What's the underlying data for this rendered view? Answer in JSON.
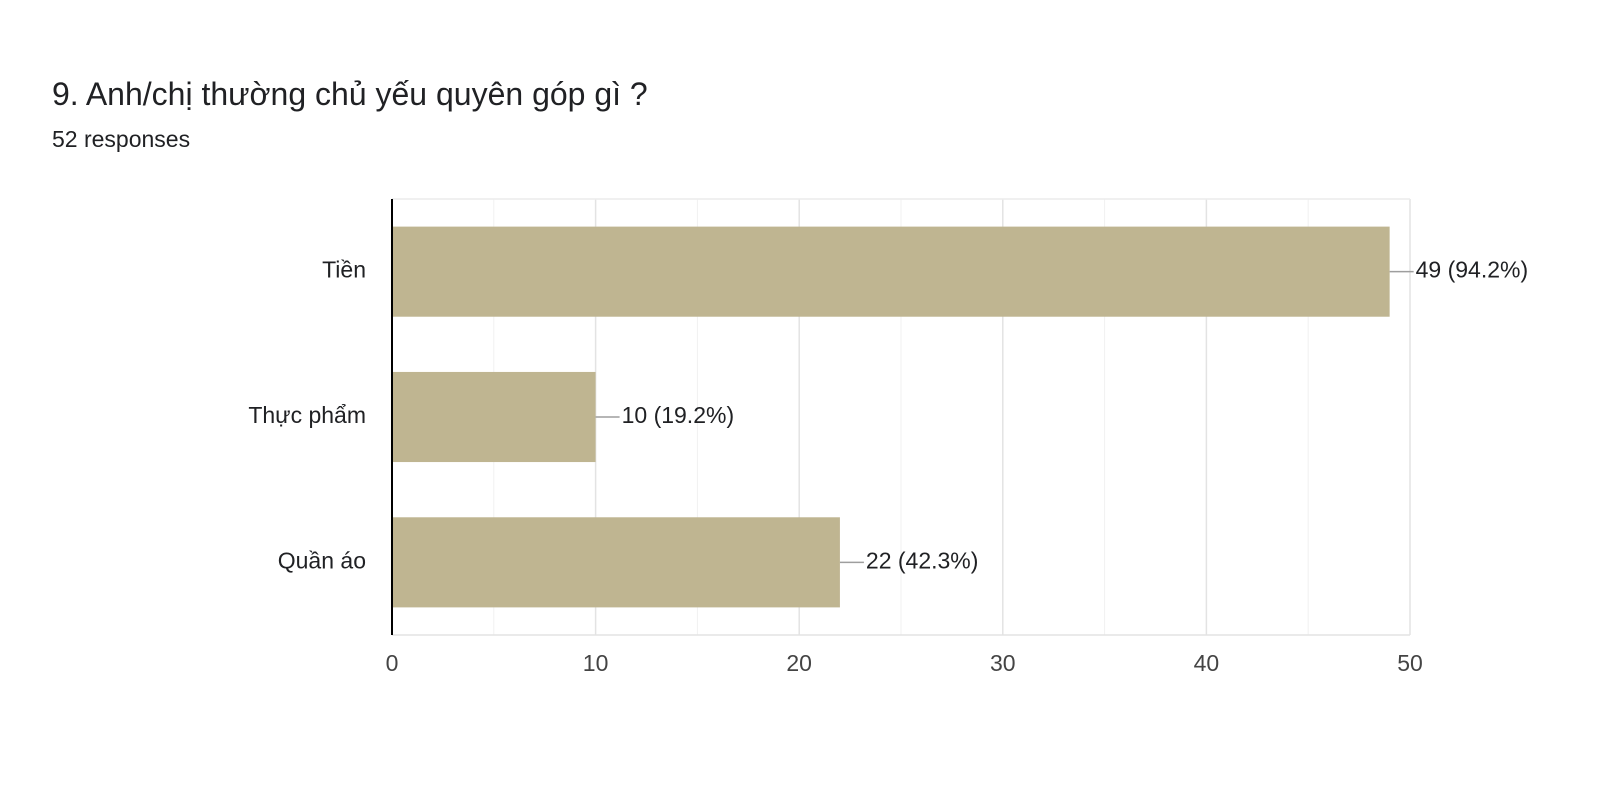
{
  "header": {
    "title": "9. Anh/chị thường chủ yếu quyên góp gì ?",
    "responses": "52 responses"
  },
  "colors": {
    "bar": "#bfb591",
    "grid": "#ececec",
    "axis": "#000000",
    "text": "#202124",
    "tick_text": "#444444"
  },
  "chart_data": {
    "type": "bar",
    "orientation": "horizontal",
    "title": "9. Anh/chị thường chủ yếu quyên góp gì ?",
    "subtitle": "52 responses",
    "categories": [
      "Tiền",
      "Thực phẩm",
      "Quần áo"
    ],
    "values": [
      49,
      10,
      22
    ],
    "labels": [
      "49 (94.2%)",
      "10 (19.2%)",
      "22 (42.3%)"
    ],
    "xlim": [
      0,
      50
    ],
    "xticks": [
      0,
      10,
      20,
      30,
      40,
      50
    ],
    "minor_gridlines": true,
    "xlabel": "",
    "ylabel": "",
    "legend": "none"
  }
}
